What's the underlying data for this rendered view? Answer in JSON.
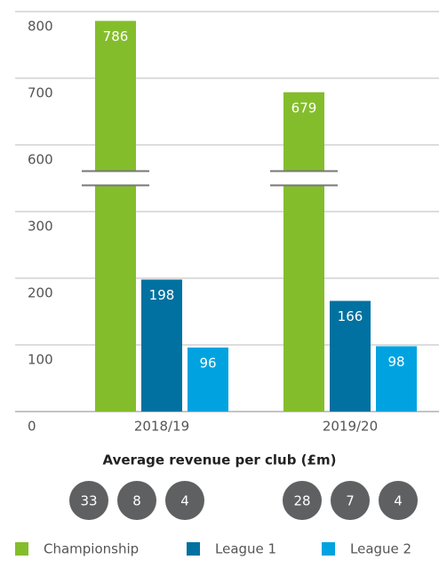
{
  "chart_data": {
    "type": "bar",
    "categories": [
      "2018/19",
      "2019/20"
    ],
    "series": [
      {
        "name": "Championship",
        "color": "#84bd2c",
        "values": [
          786,
          679
        ]
      },
      {
        "name": "League 1",
        "color": "#0071a0",
        "values": [
          198,
          166
        ]
      },
      {
        "name": "League 2",
        "color": "#00a3e0",
        "values": [
          96,
          98
        ]
      }
    ],
    "ylim": [
      0,
      800
    ],
    "yticks": [
      0,
      100,
      200,
      300,
      600,
      700,
      800
    ],
    "grid": true,
    "legend": "bottom",
    "subtitle": "Average revenue per club (£m)",
    "club_averages": [
      [
        33,
        8,
        4
      ],
      [
        28,
        7,
        4
      ]
    ]
  }
}
